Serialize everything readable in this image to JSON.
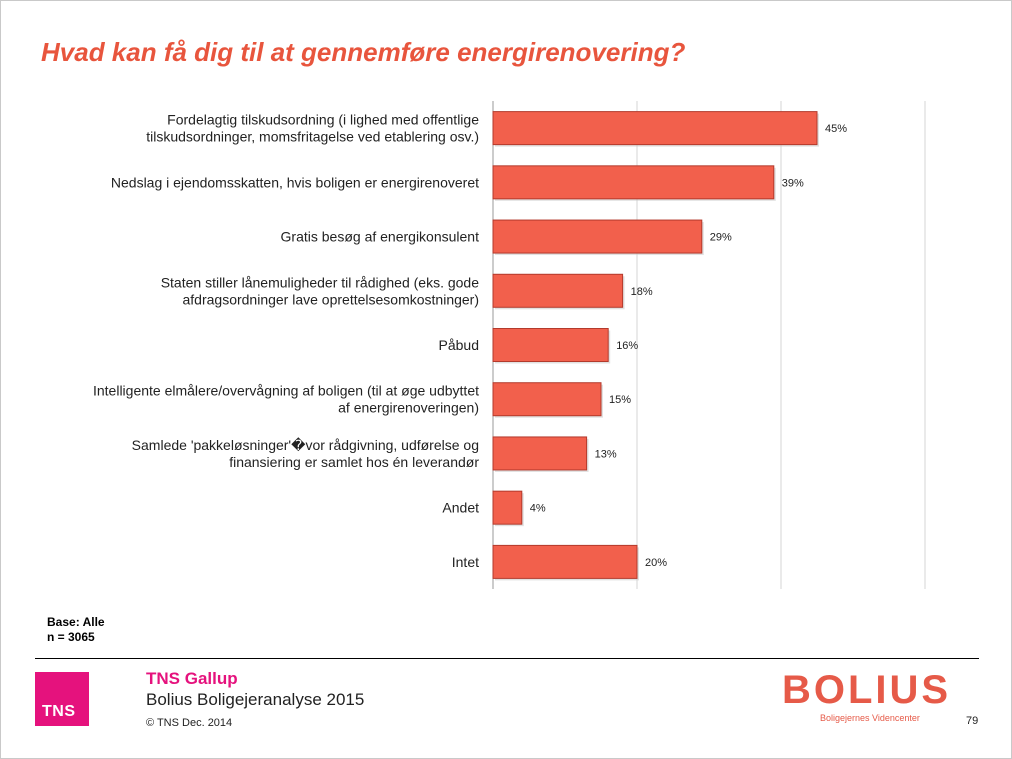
{
  "title": "Hvad kan få dig til at gennemføre energirenovering?",
  "base_label": "Base: Alle",
  "n_label": "n = 3065",
  "footer": {
    "tns_logo": "TNS",
    "tns_brand": "TNS Gallup",
    "subtitle": "Bolius Boligejeranalyse 2015",
    "copyright": "© TNS Dec. 2014",
    "bolius_logo": "BOLIUS",
    "bolius_tagline": "Boligejernes Videncenter",
    "page_number": "79"
  },
  "colors": {
    "bar": "#f2604c",
    "bar_stroke": "#b33a2c",
    "title": "#e8553d",
    "tns": "#e5127d",
    "bolius": "#e65a48"
  },
  "chart_data": {
    "type": "bar",
    "orientation": "horizontal",
    "categories": [
      [
        "Fordelagtig tilskudsordning (i lighed med offentlige",
        "tilskudsordninger, momsfritagelse ved etablering osv.)"
      ],
      [
        "Nedslag i ejendomsskatten, hvis boligen er energirenoveret"
      ],
      [
        "Gratis besøg af energikonsulent"
      ],
      [
        "Staten stiller lånemuligheder til rådighed (eks. gode",
        "afdragsordninger lave oprettelsesomkostninger)"
      ],
      [
        "Påbud"
      ],
      [
        "Intelligente elmålere/overvågning af boligen (til at øge udbyttet",
        "af energirenoveringen)"
      ],
      [
        "Samlede 'pakkeløsninger'�vor rådgivning, udførelse og",
        "finansiering er samlet hos én leverandør"
      ],
      [
        "Andet"
      ],
      [
        "Intet"
      ]
    ],
    "values": [
      45,
      39,
      29,
      18,
      16,
      15,
      13,
      4,
      20
    ],
    "value_labels": [
      "45%",
      "39%",
      "29%",
      "18%",
      "16%",
      "15%",
      "13%",
      "4%",
      "20%"
    ],
    "xlim": [
      0,
      60
    ],
    "gridlines_at": [
      0,
      20,
      40,
      60
    ],
    "grid": true,
    "legend": "none"
  }
}
